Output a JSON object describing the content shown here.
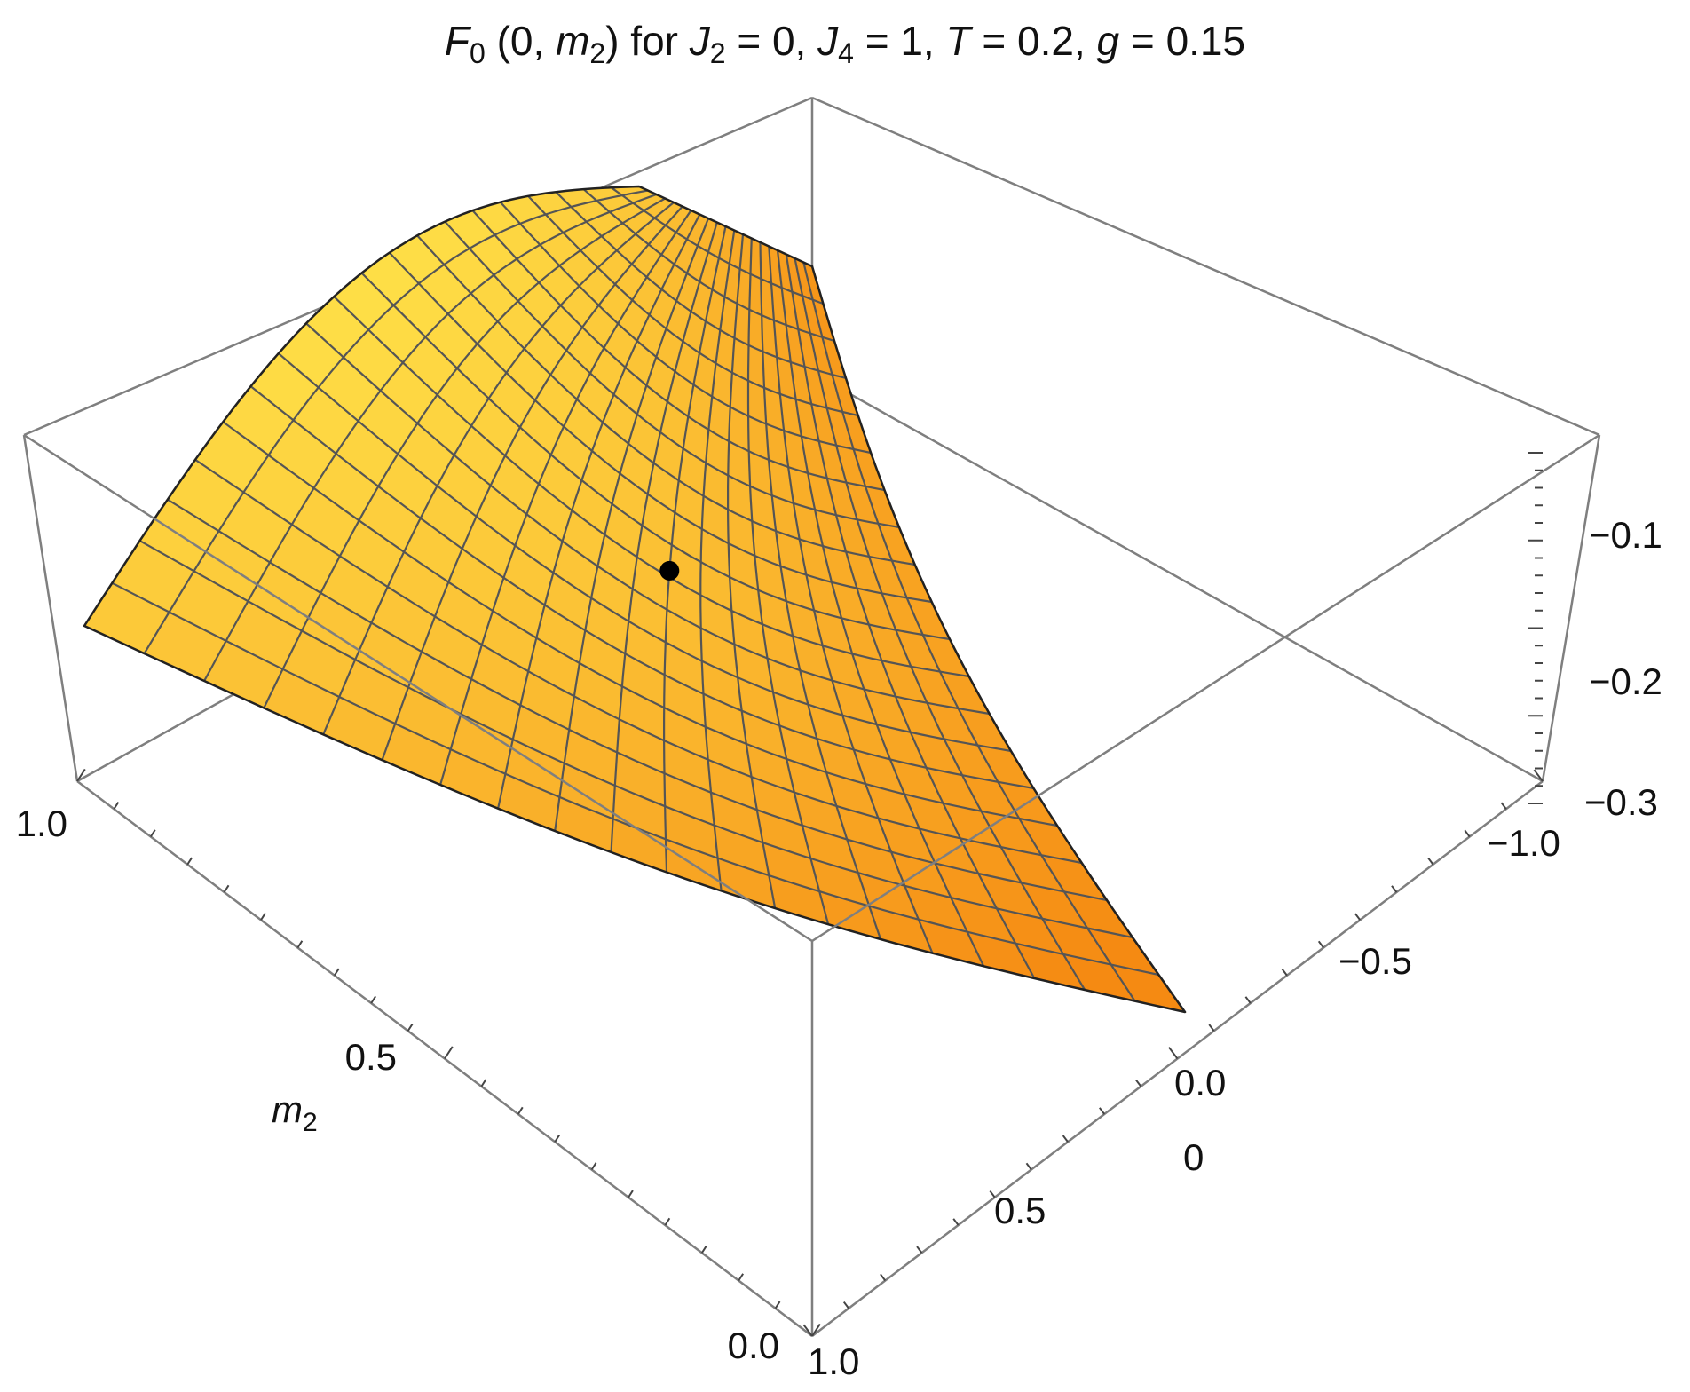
{
  "chart_data": {
    "type": "surface3d",
    "title": {
      "F": "F",
      "F_sub": "0",
      "args_open": " (0, ",
      "m": "m",
      "m_sub": "2",
      "args_close": ") for ",
      "J2": "J",
      "J2_sub": "2",
      "J2_eq": " = 0, ",
      "J4": "J",
      "J4_sub": "4",
      "J4_eq": " = 1, ",
      "T": "T",
      "T_eq": " = 0.2, ",
      "g": "g",
      "g_eq": " = 0.15"
    },
    "axes": {
      "left": {
        "label_var": "m",
        "label_sub": "2",
        "range": [
          0.0,
          1.0
        ],
        "tick_labels": [
          "0.0",
          "0.5",
          "1.0"
        ]
      },
      "front": {
        "label": "",
        "tick_labels": [
          "1.0",
          "0.5",
          "0"
        ]
      },
      "right": {
        "label": "",
        "tick_labels": [
          "0.0",
          "-0.5",
          "-1.0"
        ]
      },
      "vertical": {
        "label": "",
        "range": [
          -0.3,
          -0.05
        ],
        "tick_labels": [
          "-0.1",
          "-0.2",
          "-0.3"
        ]
      }
    },
    "grid": false,
    "surface_rows": 21,
    "surface_cols": 21,
    "marked_point": {
      "u": 0.46,
      "v": 0.5,
      "value": -0.155
    },
    "colors": {
      "surface_light": "#FFE44A",
      "surface_dark": "#F58A12",
      "mesh": "#555555",
      "box": "#7f7f7f",
      "point": "#000000"
    }
  }
}
